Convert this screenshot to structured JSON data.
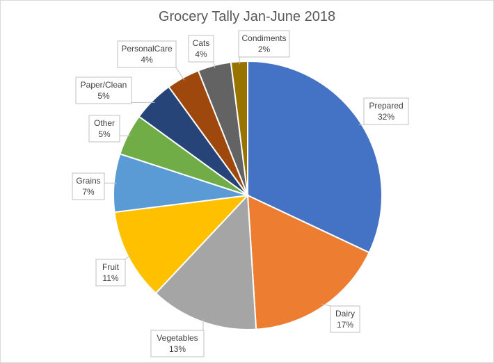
{
  "chart_data": {
    "type": "pie",
    "title": "Grocery Tally Jan-June 2018",
    "start": "top, clockwise",
    "slices": [
      {
        "label": "Prepared",
        "value": 32,
        "pct": "32%",
        "color": "#4472C4"
      },
      {
        "label": "Dairy",
        "value": 17,
        "pct": "17%",
        "color": "#ED7D31"
      },
      {
        "label": "Vegetables",
        "value": 13,
        "pct": "13%",
        "color": "#A5A5A5"
      },
      {
        "label": "Fruit",
        "value": 11,
        "pct": "11%",
        "color": "#FFC000"
      },
      {
        "label": "Grains",
        "value": 7,
        "pct": "7%",
        "color": "#5B9BD5"
      },
      {
        "label": "Other",
        "value": 5,
        "pct": "5%",
        "color": "#70AD47"
      },
      {
        "label": "Paper/Clean",
        "value": 5,
        "pct": "5%",
        "color": "#264478"
      },
      {
        "label": "PersonalCare",
        "value": 4,
        "pct": "4%",
        "color": "#9E480E"
      },
      {
        "label": "Cats",
        "value": 4,
        "pct": "4%",
        "color": "#636363"
      },
      {
        "label": "Condiments",
        "value": 2,
        "pct": "2%",
        "color": "#997300"
      }
    ]
  }
}
